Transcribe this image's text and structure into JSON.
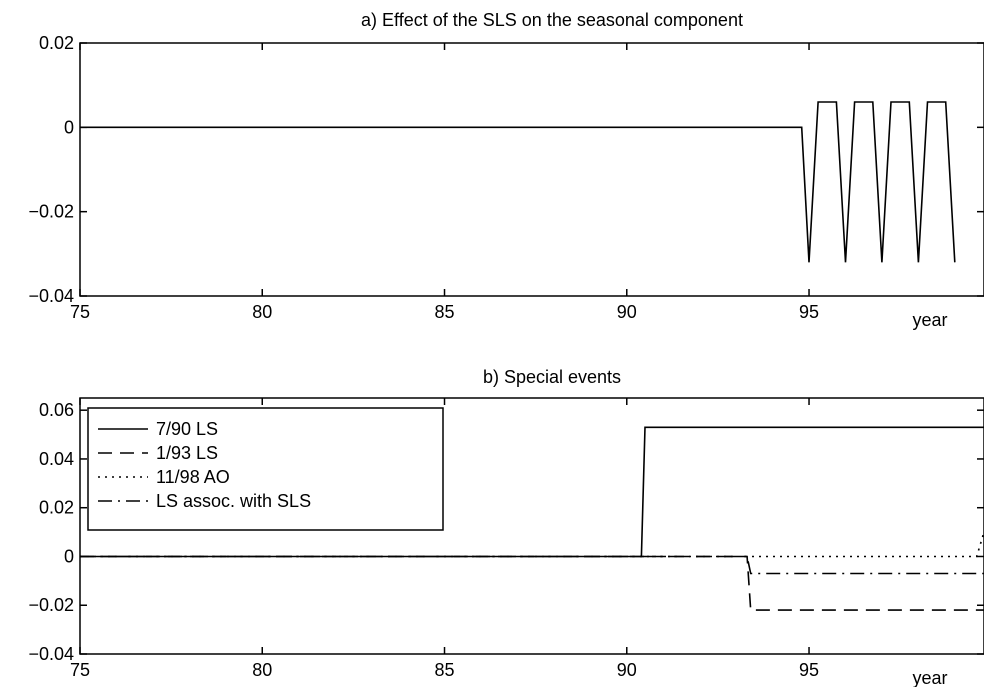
{
  "chart_data": [
    {
      "type": "line",
      "title": "a) Effect of the SLS on the seasonal component",
      "xlabel": "year",
      "ylabel": "",
      "xlim": [
        75,
        99.8
      ],
      "ylim": [
        -0.04,
        0.02
      ],
      "xticks": [
        75,
        80,
        85,
        90,
        95
      ],
      "yticks": [
        -0.04,
        -0.02,
        0,
        0.02
      ],
      "xtick_labels": [
        "75",
        "80",
        "85",
        "90",
        "95"
      ],
      "ytick_labels": [
        "−0.04",
        "−0.02",
        "0",
        "0.02"
      ],
      "grid": false,
      "legend": null,
      "series": [
        {
          "style": "solid",
          "x": [
            75,
            94.8,
            95.0,
            95.25,
            95.75,
            96.0,
            96.25,
            96.75,
            97.0,
            97.25,
            97.75,
            98.0,
            98.25,
            98.75,
            99.0
          ],
          "y": [
            0,
            0,
            -0.032,
            0.006,
            0.006,
            -0.032,
            0.006,
            0.006,
            -0.032,
            0.006,
            0.006,
            -0.032,
            0.006,
            0.006,
            -0.032
          ]
        }
      ]
    },
    {
      "type": "line",
      "title": "b) Special events",
      "xlabel": "year",
      "ylabel": "",
      "xlim": [
        75,
        99.8
      ],
      "ylim": [
        -0.04,
        0.065
      ],
      "xticks": [
        75,
        80,
        85,
        90,
        95
      ],
      "yticks": [
        -0.04,
        -0.02,
        0,
        0.02,
        0.04,
        0.06
      ],
      "xtick_labels": [
        "75",
        "80",
        "85",
        "90",
        "95"
      ],
      "ytick_labels": [
        "−0.04",
        "−0.02",
        "0",
        "0.02",
        "0.04",
        "0.06"
      ],
      "grid": false,
      "legend": "top-left",
      "series": [
        {
          "name": "7/90 LS",
          "style": "solid",
          "x": [
            75,
            90.4,
            90.5,
            99.8
          ],
          "y": [
            0,
            0,
            0.053,
            0.053
          ]
        },
        {
          "name": "1/93 LS",
          "style": "dashed",
          "x": [
            75,
            93.3,
            93.4,
            99.8
          ],
          "y": [
            0,
            0,
            -0.022,
            -0.022
          ]
        },
        {
          "name": "11/98 AO",
          "style": "dotted",
          "x": [
            75,
            99.6,
            99.8
          ],
          "y": [
            0,
            0,
            0.01
          ]
        },
        {
          "name": "LS assoc. with SLS",
          "style": "dashdot",
          "x": [
            75,
            93.3,
            93.4,
            99.8
          ],
          "y": [
            0,
            0,
            -0.007,
            -0.007
          ]
        }
      ]
    }
  ]
}
